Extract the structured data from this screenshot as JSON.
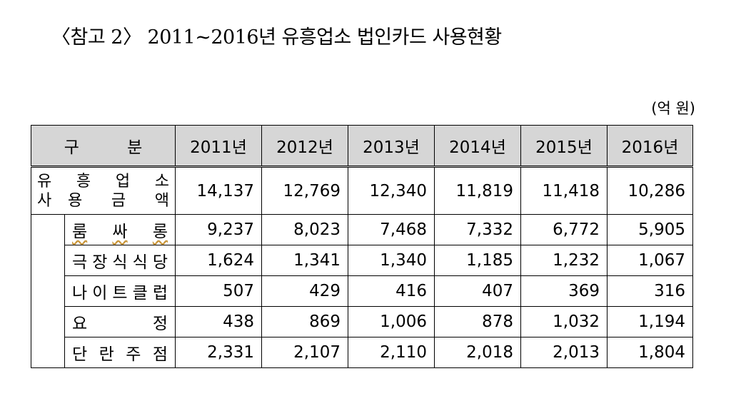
{
  "title": "〈참고 2〉 2011~2016년 유흥업소 법인카드 사용현황",
  "unit": "(억 원)",
  "table": {
    "header": {
      "category": "구 분",
      "years": [
        "2011년",
        "2012년",
        "2013년",
        "2014년",
        "2015년",
        "2016년"
      ]
    },
    "total": {
      "label_line1": [
        "유",
        "흥",
        "업",
        "소"
      ],
      "label_line2": [
        "사",
        "용",
        "금",
        "액"
      ],
      "values": [
        "14,137",
        "12,769",
        "12,340",
        "11,819",
        "11,418",
        "10,286"
      ]
    },
    "rows": [
      {
        "label": [
          "룸",
          "싸",
          "롱"
        ],
        "values": [
          "9,237",
          "8,023",
          "7,468",
          "7,332",
          "6,772",
          "5,905"
        ]
      },
      {
        "label": [
          "극",
          "장",
          "식",
          "식",
          "당"
        ],
        "values": [
          "1,624",
          "1,341",
          "1,340",
          "1,185",
          "1,232",
          "1,067"
        ]
      },
      {
        "label": [
          "나",
          "이",
          "트",
          "클",
          "럽"
        ],
        "values": [
          "507",
          "429",
          "416",
          "407",
          "369",
          "316"
        ]
      },
      {
        "label": [
          "요",
          "정"
        ],
        "values": [
          "438",
          "869",
          "1,006",
          "878",
          "1,032",
          "1,194"
        ]
      },
      {
        "label": [
          "단",
          "란",
          "주",
          "점"
        ],
        "values": [
          "2,331",
          "2,107",
          "2,110",
          "2,018",
          "2,013",
          "1,804"
        ]
      }
    ]
  }
}
